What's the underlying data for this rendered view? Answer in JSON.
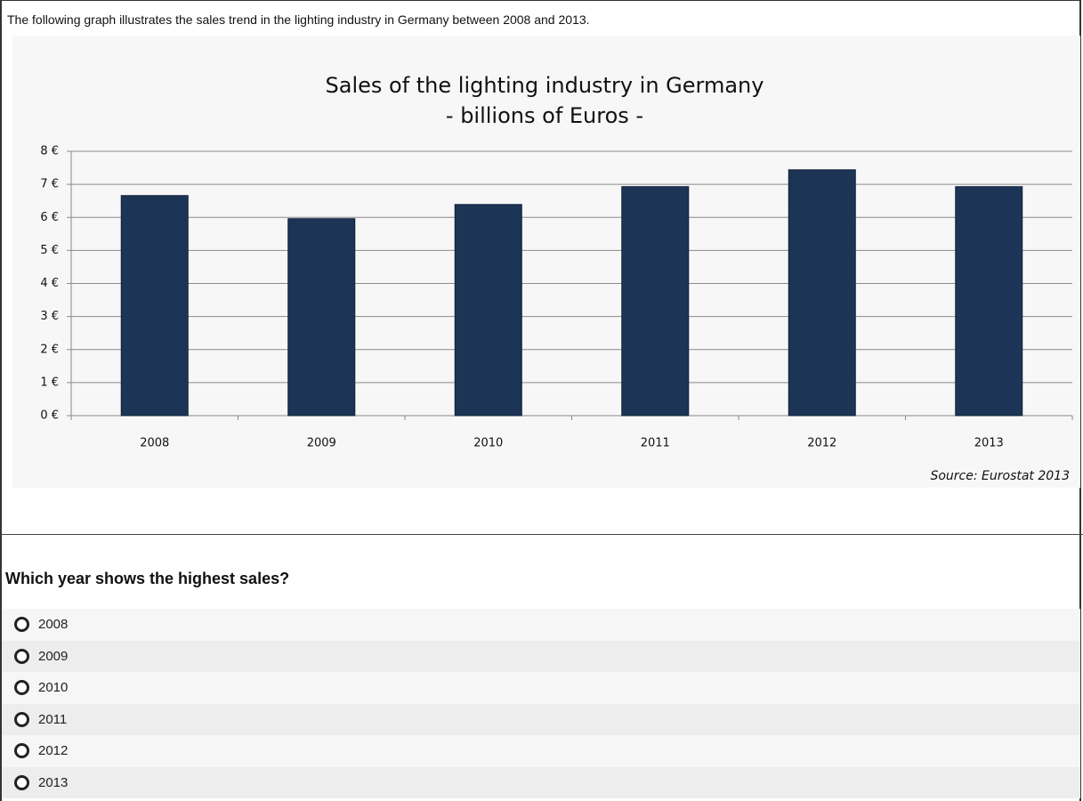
{
  "intro": "The following graph illustrates the sales trend in the lighting industry in Germany between 2008 and 2013.",
  "chart_data": {
    "type": "bar",
    "title": "Sales of the lighting industry in Germany",
    "subtitle": "- billions of Euros -",
    "source": "Source: Eurostat 2013",
    "categories": [
      "2008",
      "2009",
      "2010",
      "2011",
      "2012",
      "2013"
    ],
    "values": [
      6.66,
      5.96,
      6.39,
      6.93,
      7.44,
      6.93
    ],
    "color": "#1c3557",
    "ylim": [
      0,
      8
    ],
    "yticks": [
      {
        "value": 0,
        "label": "0 €"
      },
      {
        "value": 1,
        "label": "1 €"
      },
      {
        "value": 2,
        "label": "2 €"
      },
      {
        "value": 3,
        "label": "3 €"
      },
      {
        "value": 4,
        "label": "4 €"
      },
      {
        "value": 5,
        "label": "5 €"
      },
      {
        "value": 6,
        "label": "6 €"
      },
      {
        "value": 7,
        "label": "7 €"
      },
      {
        "value": 8,
        "label": "8 €"
      }
    ],
    "grid": true
  },
  "question": "Which year shows the highest sales?",
  "options": [
    "2008",
    "2009",
    "2010",
    "2011",
    "2012",
    "2013"
  ]
}
